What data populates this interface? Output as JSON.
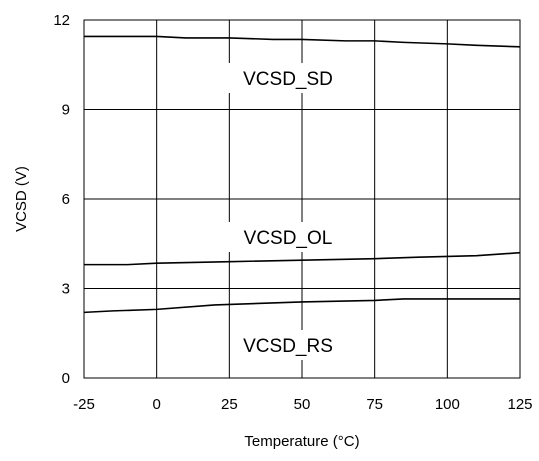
{
  "chart_data": {
    "type": "line",
    "xlabel": "Temperature (°C)",
    "ylabel": "VCSD (V)",
    "xlim": [
      -25,
      125
    ],
    "ylim": [
      0,
      12
    ],
    "x_ticks": [
      -25,
      0,
      25,
      50,
      75,
      100,
      125
    ],
    "x_tick_labels": [
      "-25",
      "0",
      "25",
      "50",
      "75",
      "100",
      "125"
    ],
    "y_ticks": [
      0,
      3,
      6,
      9,
      12
    ],
    "y_tick_labels": [
      "0",
      "3",
      "6",
      "9",
      "12"
    ],
    "grid": true,
    "line_color": "#000000",
    "series": [
      {
        "name": "VCSD_SD",
        "x": [
          -25,
          0,
          10,
          25,
          40,
          50,
          65,
          75,
          85,
          100,
          110,
          125
        ],
        "y": [
          11.45,
          11.45,
          11.4,
          11.4,
          11.35,
          11.35,
          11.3,
          11.3,
          11.25,
          11.2,
          11.15,
          11.1
        ]
      },
      {
        "name": "VCSD_OL",
        "x": [
          -25,
          -10,
          0,
          25,
          50,
          75,
          90,
          110,
          125
        ],
        "y": [
          3.8,
          3.8,
          3.85,
          3.9,
          3.95,
          4.0,
          4.05,
          4.1,
          4.2
        ]
      },
      {
        "name": "VCSD_RS",
        "x": [
          -25,
          -15,
          0,
          20,
          50,
          75,
          85,
          110,
          125
        ],
        "y": [
          2.2,
          2.25,
          2.3,
          2.45,
          2.55,
          2.6,
          2.65,
          2.65,
          2.65
        ]
      }
    ]
  }
}
